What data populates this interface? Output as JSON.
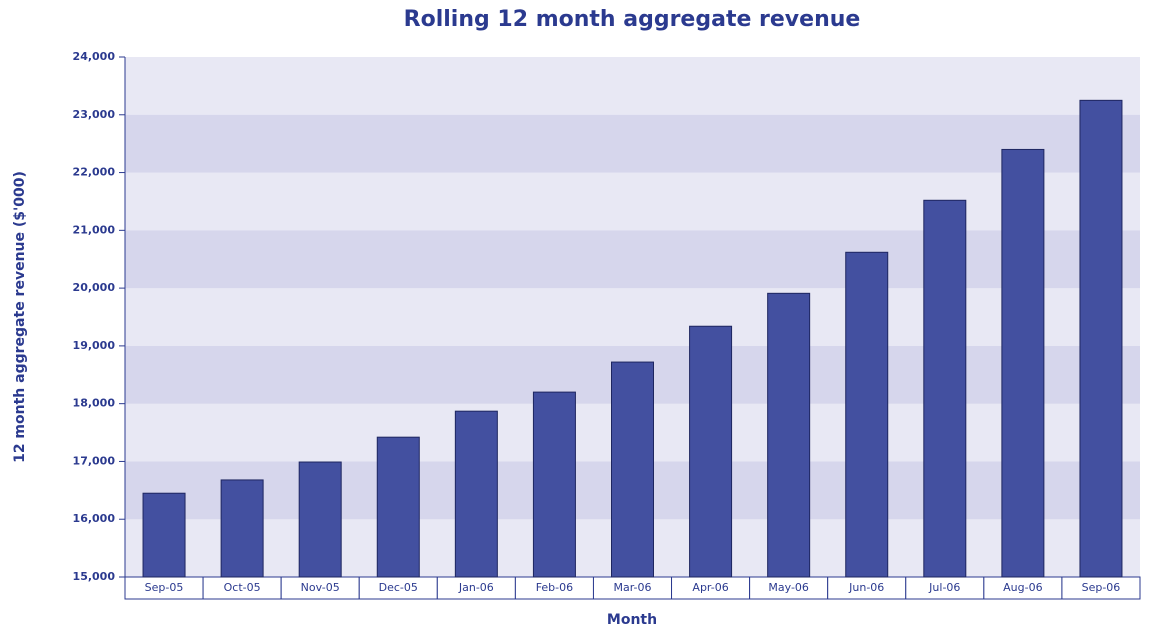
{
  "chart_data": {
    "type": "bar",
    "title": "Rolling 12 month aggregate revenue",
    "x_label": "Month",
    "y_label": "12 month aggregate revenue ($'000)",
    "categories": [
      "Sep-05",
      "Oct-05",
      "Nov-05",
      "Dec-05",
      "Jan-06",
      "Feb-06",
      "Mar-06",
      "Apr-06",
      "May-06",
      "Jun-06",
      "Jul-06",
      "Aug-06",
      "Sep-06"
    ],
    "values": [
      16450,
      16680,
      16990,
      17420,
      17870,
      18200,
      18720,
      19340,
      19910,
      20620,
      21520,
      22400,
      23250
    ],
    "color": "#4350a0",
    "ylim": [
      15000,
      24000
    ],
    "yticks": [
      {
        "value": 15000,
        "label": "15,000"
      },
      {
        "value": 16000,
        "label": "16,000"
      },
      {
        "value": 17000,
        "label": "17,000"
      },
      {
        "value": 18000,
        "label": "18,000"
      },
      {
        "value": 19000,
        "label": "19,000"
      },
      {
        "value": 20000,
        "label": "20,000"
      },
      {
        "value": 21000,
        "label": "21,000"
      },
      {
        "value": 22000,
        "label": "22,000"
      },
      {
        "value": 23000,
        "label": "23,000"
      },
      {
        "value": 24000,
        "label": "24,000"
      }
    ],
    "grid": true
  }
}
